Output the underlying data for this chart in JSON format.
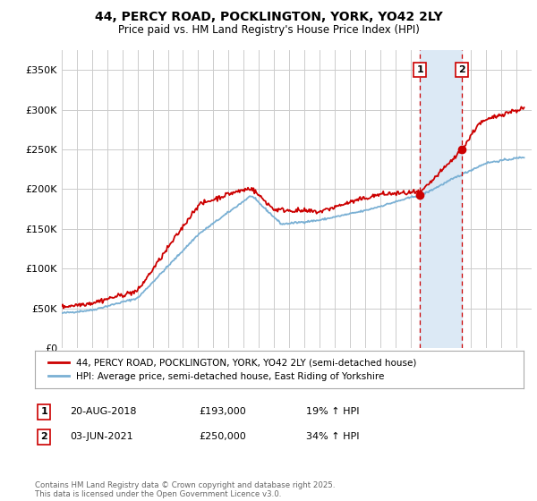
{
  "title": "44, PERCY ROAD, POCKLINGTON, YORK, YO42 2LY",
  "subtitle": "Price paid vs. HM Land Registry's House Price Index (HPI)",
  "ylabel_ticks": [
    "£0",
    "£50K",
    "£100K",
    "£150K",
    "£200K",
    "£250K",
    "£300K",
    "£350K"
  ],
  "ytick_values": [
    0,
    50000,
    100000,
    150000,
    200000,
    250000,
    300000,
    350000
  ],
  "ylim": [
    0,
    375000
  ],
  "xlim_start": 1995,
  "xlim_end": 2026,
  "red_color": "#cc0000",
  "blue_color": "#7ab0d4",
  "shade_color": "#dce9f5",
  "marker1_x": 2018.64,
  "marker2_x": 2021.42,
  "marker1_price": 193000,
  "marker2_price": 250000,
  "legend1": "44, PERCY ROAD, POCKLINGTON, YORK, YO42 2LY (semi-detached house)",
  "legend2": "HPI: Average price, semi-detached house, East Riding of Yorkshire",
  "table_row1": [
    "1",
    "20-AUG-2018",
    "£193,000",
    "19% ↑ HPI"
  ],
  "table_row2": [
    "2",
    "03-JUN-2021",
    "£250,000",
    "34% ↑ HPI"
  ],
  "footnote": "Contains HM Land Registry data © Crown copyright and database right 2025.\nThis data is licensed under the Open Government Licence v3.0.",
  "background_color": "#ffffff",
  "plot_bg_color": "#ffffff",
  "grid_color": "#cccccc"
}
